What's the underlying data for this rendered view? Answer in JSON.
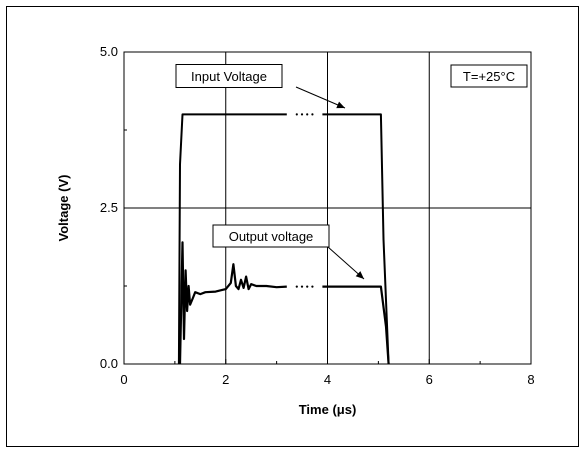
{
  "chart_data": {
    "type": "line",
    "title": "",
    "xlabel": "Time (μs)",
    "ylabel": "Voltage (V)",
    "xlim": [
      0,
      8
    ],
    "ylim": [
      0,
      5
    ],
    "x_ticks": [
      "0",
      "2",
      "4",
      "6",
      "8"
    ],
    "y_ticks": [
      "0.0",
      "2.5",
      "5.0"
    ],
    "grid": true,
    "series": [
      {
        "name": "Input Voltage",
        "color": "#000000",
        "x": [
          1.08,
          1.1,
          1.15,
          2.5,
          3.2,
          3.9,
          5.05,
          5.1,
          5.2
        ],
        "y": [
          0.0,
          3.2,
          4.0,
          4.0,
          4.0,
          4.0,
          4.0,
          2.0,
          0.0
        ]
      },
      {
        "name": "Output voltage",
        "color": "#000000",
        "x": [
          1.1,
          1.15,
          1.18,
          1.21,
          1.24,
          1.27,
          1.3,
          1.35,
          1.4,
          1.5,
          1.6,
          1.8,
          2.0,
          2.1,
          2.15,
          2.2,
          2.25,
          2.3,
          2.35,
          2.4,
          2.45,
          2.5,
          2.6,
          2.8,
          3.0,
          3.2,
          3.9,
          4.5,
          5.05,
          5.15,
          5.2
        ],
        "y": [
          0.0,
          1.95,
          0.4,
          1.5,
          0.85,
          1.25,
          0.95,
          1.05,
          1.15,
          1.12,
          1.15,
          1.16,
          1.2,
          1.3,
          1.6,
          1.25,
          1.2,
          1.35,
          1.22,
          1.4,
          1.2,
          1.28,
          1.25,
          1.25,
          1.23,
          1.24,
          1.24,
          1.24,
          1.24,
          0.6,
          0.0
        ]
      }
    ],
    "annotations": {
      "input_label": "Input Voltage",
      "output_label": "Output voltage",
      "temperature": "T=+25°C",
      "ellipsis": "· · · ·"
    }
  }
}
